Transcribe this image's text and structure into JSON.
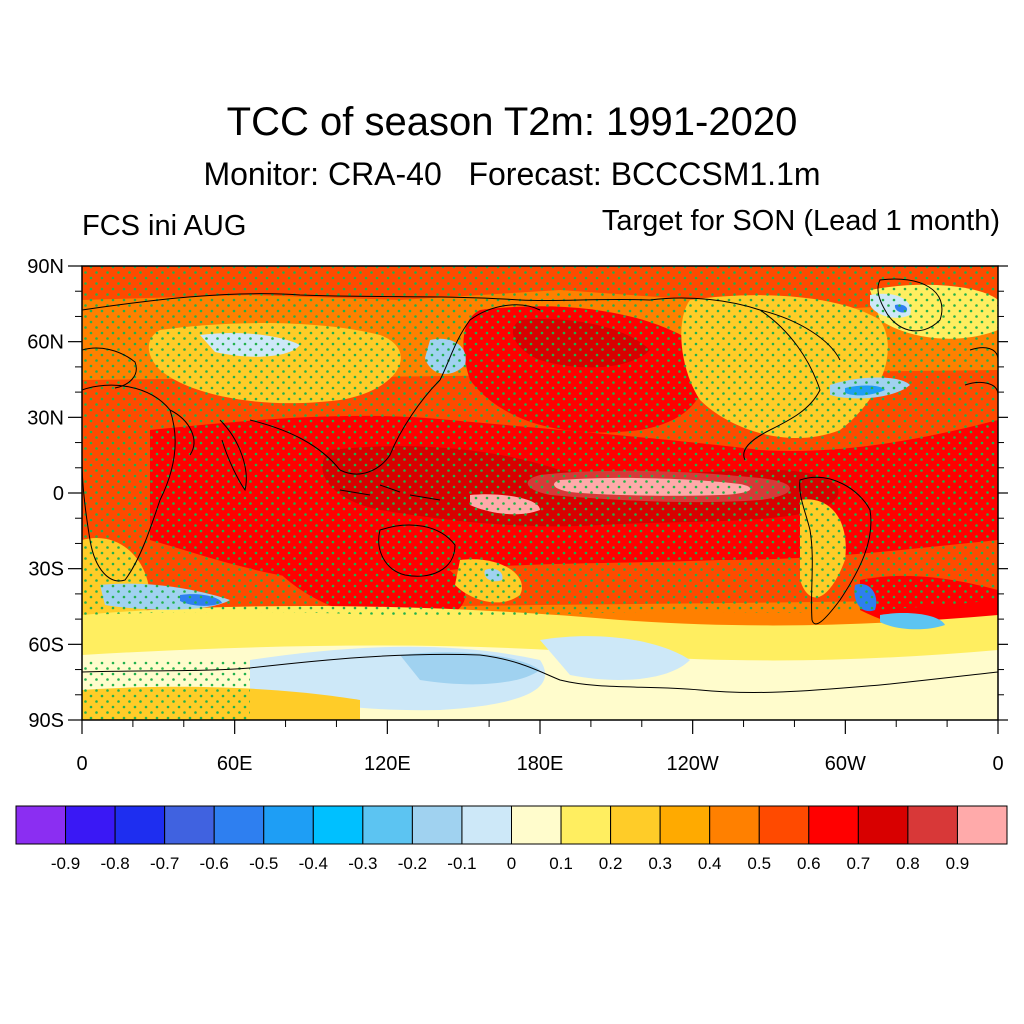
{
  "header": {
    "title": "TCC of season T2m: 1991-2020",
    "subtitle": "Monitor: CRA-40   Forecast: BCCCSM1.1m",
    "left_label": "FCS ini AUG",
    "right_label": "Target for SON (Lead 1 month)"
  },
  "map": {
    "projection": "equirectangular",
    "lon_range": [
      0,
      360
    ],
    "lat_range": [
      -90,
      90
    ],
    "lat_tick_labels": [
      "90N",
      "60N",
      "30N",
      "0",
      "30S",
      "60S",
      "90S"
    ],
    "lon_tick_labels": [
      "0",
      "60E",
      "120E",
      "180E",
      "120W",
      "60W",
      "0"
    ],
    "stipple_color": "#22b14c",
    "coastline_color": "#000000"
  },
  "colorbar": {
    "colors": [
      "#8b2ef2",
      "#3a18f5",
      "#1e2ef0",
      "#4062e0",
      "#2e7ff0",
      "#1e9ef5",
      "#00c0ff",
      "#5cc4f2",
      "#a0d2f0",
      "#cde8f8",
      "#fffccc",
      "#ffee60",
      "#ffcc28",
      "#ffaa00",
      "#ff8000",
      "#ff4a00",
      "#ff0000",
      "#d80000",
      "#d83838",
      "#ffaaaa"
    ],
    "labels": [
      "-0.9",
      "-0.8",
      "-0.7",
      "-0.6",
      "-0.5",
      "-0.4",
      "-0.3",
      "-0.2",
      "-0.1",
      "0",
      "0.1",
      "0.2",
      "0.3",
      "0.4",
      "0.5",
      "0.6",
      "0.7",
      "0.8",
      "0.9"
    ]
  }
}
